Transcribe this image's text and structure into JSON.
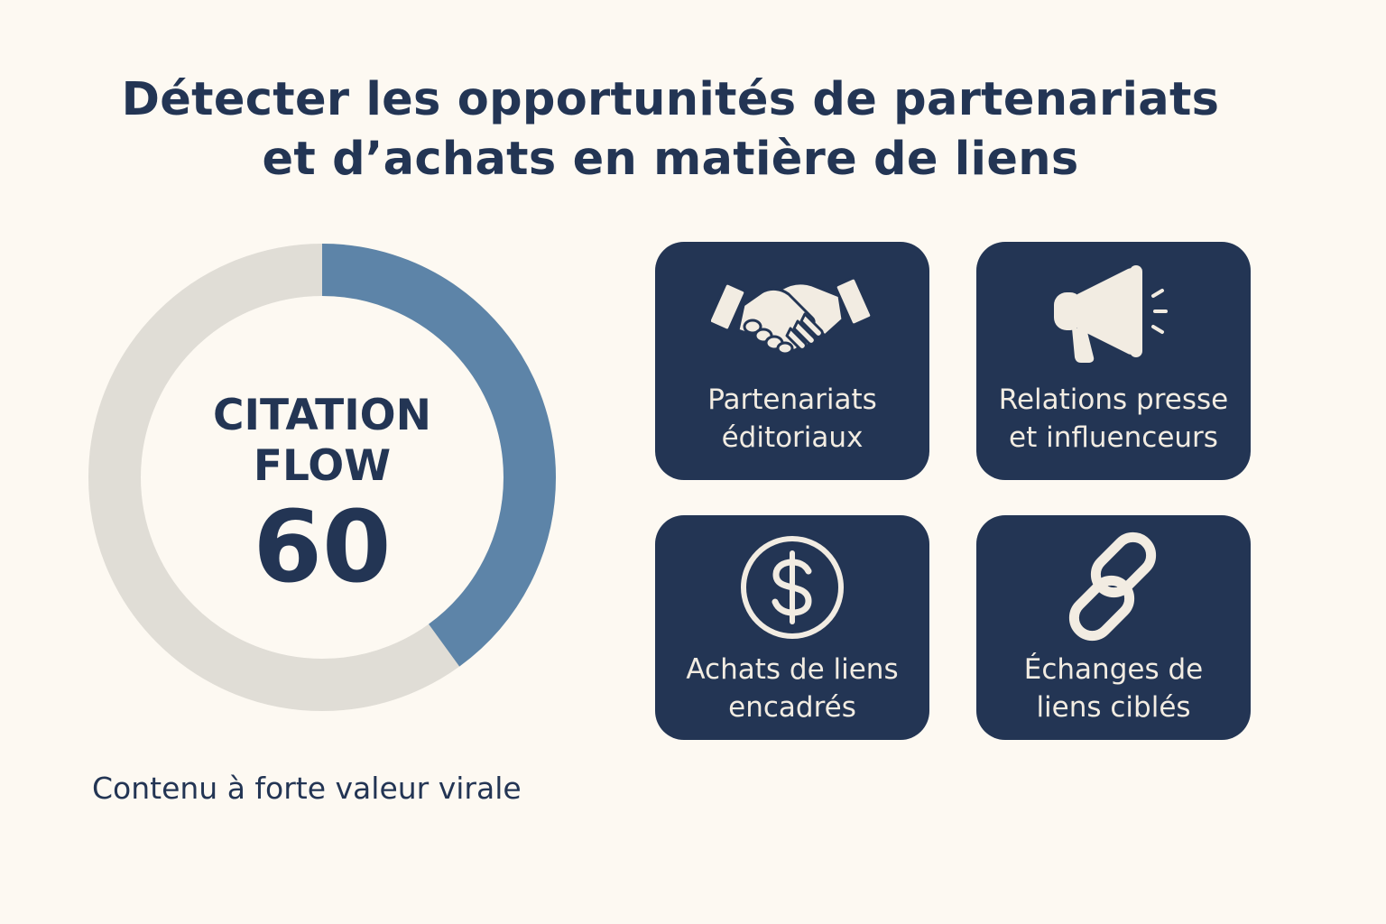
{
  "title": {
    "line1": "Détecter les opportunités de partenariats",
    "line2": "et d’achats en matière de liens"
  },
  "gauge": {
    "label_line1": "CITATION",
    "label_line2": "FLOW",
    "value": "60",
    "fill_fraction": 0.4,
    "fill_color": "#5d84a8",
    "track_color": "#e0ddd6"
  },
  "caption": "Contenu à forte valeur virale",
  "cards": [
    {
      "icon": "handshake-icon",
      "line1": "Partenariats",
      "line2": "éditoriaux"
    },
    {
      "icon": "megaphone-icon",
      "line1": "Relations presse",
      "line2": "et influenceurs"
    },
    {
      "icon": "dollar-icon",
      "line1": "Achats de liens",
      "line2": "encadrés"
    },
    {
      "icon": "chain-link-icon",
      "line1": "Échanges de",
      "line2": "liens ciblés"
    }
  ],
  "colors": {
    "background": "#fdf9f2",
    "navy": "#233554",
    "icon_cream": "#f2ece2"
  }
}
